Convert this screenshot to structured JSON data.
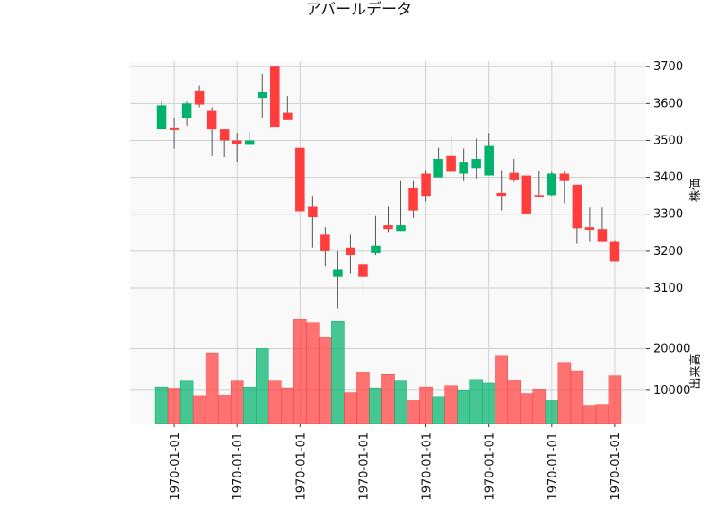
{
  "chart_data": {
    "type": "candlestick",
    "title": "アバールデータ",
    "ylabel": "株価",
    "volume_label": "出来高",
    "x_tick_labels": [
      "1970-01-01",
      "1970-01-01",
      "1970-01-01",
      "1970-01-01",
      "1970-01-01",
      "1970-01-01",
      "1970-01-01",
      "1970-01-01"
    ],
    "x_tick_positions": [
      1,
      6,
      11,
      16,
      21,
      26,
      31,
      36
    ],
    "price_ylim": [
      3015,
      3715
    ],
    "price_ticks": [
      3100,
      3200,
      3300,
      3400,
      3500,
      3600,
      3700
    ],
    "volume_ylim": [
      2000,
      27000
    ],
    "volume_ticks": [
      10000,
      20000
    ],
    "colors": {
      "up": "#00b26b",
      "down": "#ff3d3d",
      "wick": "#555555"
    },
    "candles": [
      {
        "open": 3530,
        "high": 3605,
        "low": 3530,
        "close": 3595,
        "volume": 10800
      },
      {
        "open": 3533,
        "high": 3560,
        "low": 3478,
        "close": 3530,
        "volume": 10500
      },
      {
        "open": 3560,
        "high": 3605,
        "low": 3540,
        "close": 3600,
        "volume": 12200
      },
      {
        "open": 3635,
        "high": 3648,
        "low": 3590,
        "close": 3597,
        "volume": 8700
      },
      {
        "open": 3580,
        "high": 3590,
        "low": 3458,
        "close": 3530,
        "volume": 19000
      },
      {
        "open": 3530,
        "high": 3530,
        "low": 3455,
        "close": 3500,
        "volume": 8800
      },
      {
        "open": 3500,
        "high": 3520,
        "low": 3440,
        "close": 3490,
        "volume": 12200
      },
      {
        "open": 3488,
        "high": 3525,
        "low": 3488,
        "close": 3500,
        "volume": 10800
      },
      {
        "open": 3615,
        "high": 3680,
        "low": 3562,
        "close": 3630,
        "volume": 20000
      },
      {
        "open": 3700,
        "high": 3700,
        "low": 3535,
        "close": 3535,
        "volume": 12200
      },
      {
        "open": 3575,
        "high": 3620,
        "low": 3555,
        "close": 3555,
        "volume": 10600
      },
      {
        "open": 3480,
        "high": 3480,
        "low": 3308,
        "close": 3308,
        "volume": 27000
      },
      {
        "open": 3320,
        "high": 3350,
        "low": 3210,
        "close": 3292,
        "volume": 26200
      },
      {
        "open": 3245,
        "high": 3265,
        "low": 3160,
        "close": 3200,
        "volume": 22700
      },
      {
        "open": 3130,
        "high": 3200,
        "low": 3045,
        "close": 3150,
        "volume": 26500
      },
      {
        "open": 3210,
        "high": 3245,
        "low": 3140,
        "close": 3190,
        "volume": 9400
      },
      {
        "open": 3165,
        "high": 3195,
        "low": 3090,
        "close": 3130,
        "volume": 14400
      },
      {
        "open": 3195,
        "high": 3295,
        "low": 3190,
        "close": 3215,
        "volume": 10600
      },
      {
        "open": 3270,
        "high": 3320,
        "low": 3250,
        "close": 3260,
        "volume": 13800
      },
      {
        "open": 3255,
        "high": 3390,
        "low": 3255,
        "close": 3270,
        "volume": 12200
      },
      {
        "open": 3370,
        "high": 3390,
        "low": 3290,
        "close": 3310,
        "volume": 7500
      },
      {
        "open": 3410,
        "high": 3420,
        "low": 3335,
        "close": 3350,
        "volume": 10800
      },
      {
        "open": 3400,
        "high": 3480,
        "low": 3400,
        "close": 3450,
        "volume": 8500
      },
      {
        "open": 3458,
        "high": 3510,
        "low": 3415,
        "close": 3415,
        "volume": 11100
      },
      {
        "open": 3410,
        "high": 3478,
        "low": 3390,
        "close": 3440,
        "volume": 9900
      },
      {
        "open": 3425,
        "high": 3505,
        "low": 3395,
        "close": 3450,
        "volume": 12600
      },
      {
        "open": 3405,
        "high": 3520,
        "low": 3405,
        "close": 3485,
        "volume": 11700
      },
      {
        "open": 3358,
        "high": 3420,
        "low": 3310,
        "close": 3350,
        "volume": 18200
      },
      {
        "open": 3412,
        "high": 3450,
        "low": 3388,
        "close": 3392,
        "volume": 12400
      },
      {
        "open": 3405,
        "high": 3405,
        "low": 3302,
        "close": 3302,
        "volume": 9200
      },
      {
        "open": 3352,
        "high": 3418,
        "low": 3352,
        "close": 3350,
        "volume": 10300
      },
      {
        "open": 3352,
        "high": 3415,
        "low": 3350,
        "close": 3410,
        "volume": 7500
      },
      {
        "open": 3410,
        "high": 3418,
        "low": 3330,
        "close": 3390,
        "volume": 16700
      },
      {
        "open": 3380,
        "high": 3380,
        "low": 3220,
        "close": 3262,
        "volume": 14700
      },
      {
        "open": 3265,
        "high": 3318,
        "low": 3225,
        "close": 3258,
        "volume": 6400
      },
      {
        "open": 3260,
        "high": 3318,
        "low": 3225,
        "close": 3225,
        "volume": 6600
      },
      {
        "open": 3225,
        "high": 3230,
        "low": 3172,
        "close": 3172,
        "volume": 13500
      }
    ]
  }
}
